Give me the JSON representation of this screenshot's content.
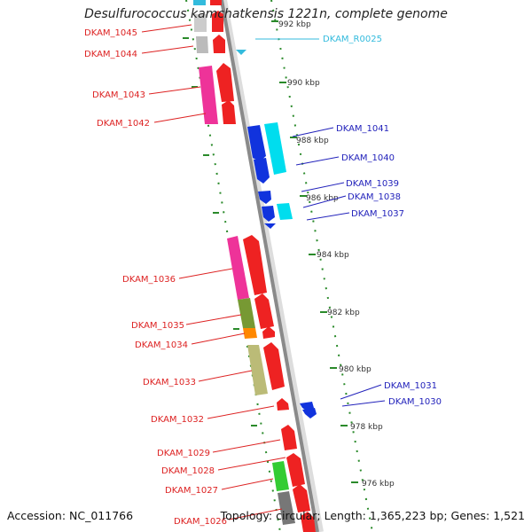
{
  "title": "Desulfurococcus kamchatkensis 1221n, complete genome",
  "footer": {
    "accession": "Accession: NC_011766",
    "topology": "Topology: circular; Length: 1,365,223 bp; Genes: 1,521"
  },
  "colors": {
    "left_label": "#dd2222",
    "right_label": "#2222bb",
    "rna_label": "#33bbdd",
    "tick_left": "#228822",
    "tick_right": "#228822",
    "backbone": "#888888"
  },
  "scale_labels": [
    "992 kbp",
    "990 kbp",
    "988 kbp",
    "986 kbp",
    "984 kbp",
    "982 kbp",
    "980 kbp",
    "978 kbp",
    "976 kbp"
  ],
  "left_genes": [
    {
      "name": "DKAM_1045",
      "color": "#cccccc"
    },
    {
      "name": "DKAM_1044",
      "color": "#bbbbbb"
    },
    {
      "name": "DKAM_1043",
      "color": "#ee3399"
    },
    {
      "name": "DKAM_1042",
      "color": "#ee3399"
    },
    {
      "name": "DKAM_1036",
      "color": "#ee3399"
    },
    {
      "name": "DKAM_1035",
      "color": "#779933"
    },
    {
      "name": "DKAM_1034",
      "color": "#ff8800"
    },
    {
      "name": "DKAM_1033",
      "color": "#bbbb77"
    },
    {
      "name": "DKAM_1032",
      "color": "#ee2222"
    },
    {
      "name": "DKAM_1029",
      "color": "#ee2222"
    },
    {
      "name": "DKAM_1028",
      "color": "#ee2222"
    },
    {
      "name": "DKAM_1027",
      "color": "#33cc33"
    },
    {
      "name": "DKAM_1026",
      "color": "#777777"
    }
  ],
  "right_genes": [
    {
      "name": "DKAM_R0025",
      "color": "#33bbdd"
    },
    {
      "name": "DKAM_1041",
      "color": "#00ddee"
    },
    {
      "name": "DKAM_1040",
      "color": "#1133dd"
    },
    {
      "name": "DKAM_1039",
      "color": "#1133dd"
    },
    {
      "name": "DKAM_1038",
      "color": "#1133dd"
    },
    {
      "name": "DKAM_1037",
      "color": "#00ddee"
    },
    {
      "name": "DKAM_1031",
      "color": "#1133dd"
    },
    {
      "name": "DKAM_1030",
      "color": "#1133dd"
    }
  ]
}
